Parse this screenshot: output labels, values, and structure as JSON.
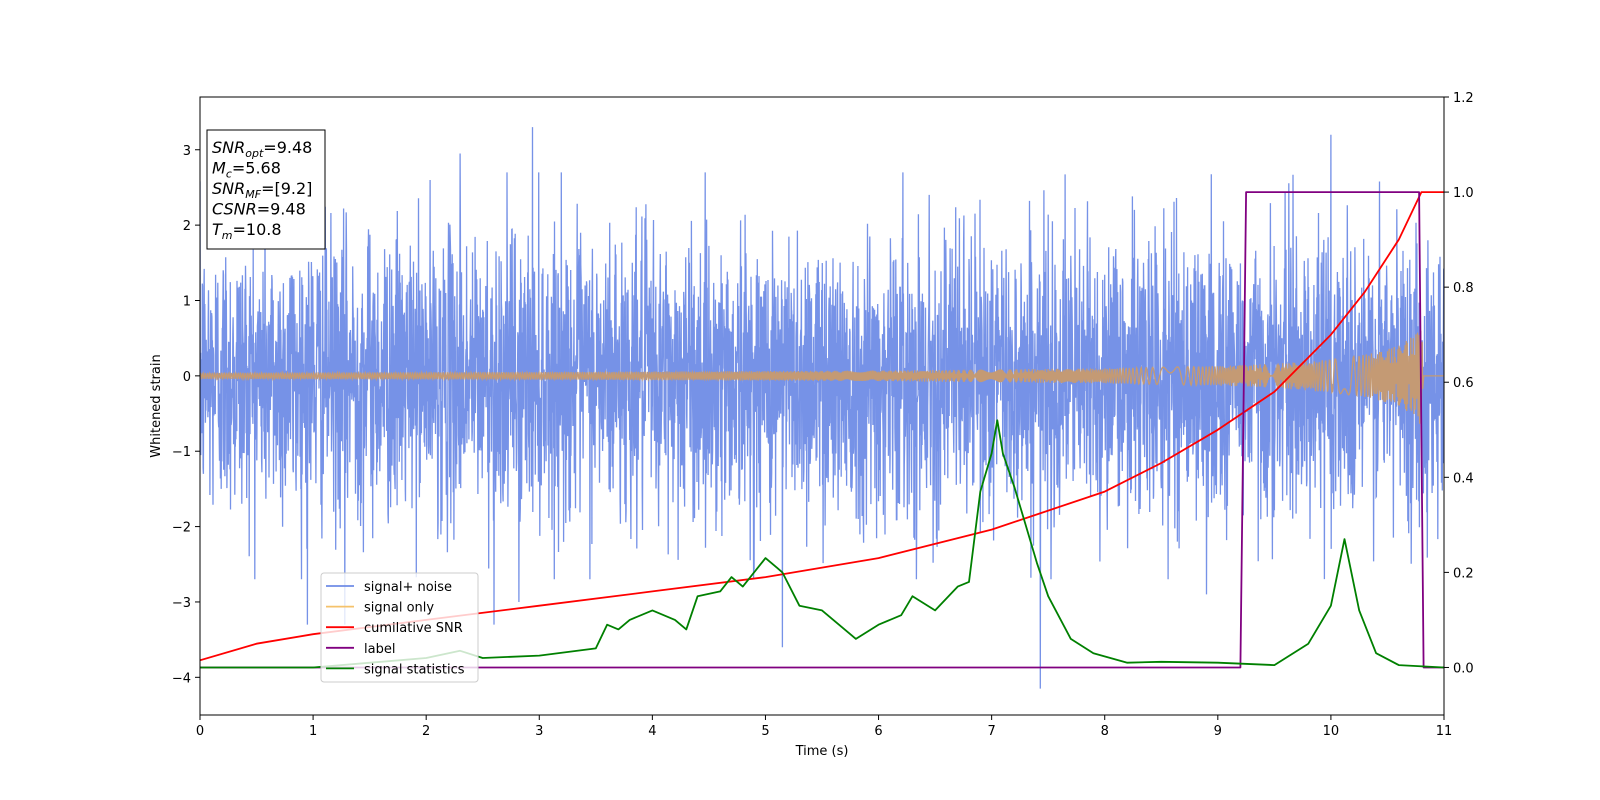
{
  "chart_data": {
    "type": "line",
    "xlabel": "Time (s)",
    "ylabel": "Whitened strain",
    "xlim": [
      0,
      11
    ],
    "ylim": [
      -4.5,
      3.7
    ],
    "y2lim": [
      -0.1,
      1.2
    ],
    "x_ticks": [
      "0",
      "1",
      "2",
      "3",
      "4",
      "5",
      "6",
      "7",
      "8",
      "9",
      "10",
      "11"
    ],
    "y_ticks": [
      "−4",
      "−3",
      "−2",
      "−1",
      "0",
      "1",
      "2",
      "3"
    ],
    "y2_ticks": [
      "0.0",
      "0.2",
      "0.4",
      "0.6",
      "0.8",
      "1.0",
      "1.2"
    ],
    "legend": {
      "placement": "lower-left",
      "entries": [
        {
          "label": "signal+ noise",
          "color": "#6f8ce6"
        },
        {
          "label": "signal only",
          "color": "#f5c26b"
        },
        {
          "label": "cumilative SNR",
          "color": "#ff0000"
        },
        {
          "label": "label",
          "color": "#800080"
        },
        {
          "label": "signal statistics",
          "color": "#008000"
        }
      ]
    },
    "stats_box": {
      "placement": "top-left",
      "lines": [
        {
          "sym": "SNR",
          "sub": "opt",
          "val": "=9.48"
        },
        {
          "sym": "M",
          "sub": "c",
          "val": "=5.68"
        },
        {
          "sym": "SNR",
          "sub": "MF",
          "val": "=[9.2]"
        },
        {
          "sym": "CSNR",
          "sub": "",
          "val": "=9.48"
        },
        {
          "sym": "T",
          "sub": "m",
          "val": "=10.8"
        }
      ]
    },
    "series": [
      {
        "name": "signal+ noise",
        "axis": "left",
        "style": "dense noise, approximately ±1.5 typical amplitude",
        "color": "#6f8ce6",
        "typical_amplitude": 1.5,
        "spike_x": [
          0.95,
          1.28,
          2.3,
          2.6,
          2.82,
          2.94,
          5.15,
          7.43,
          8.9,
          10.0
        ],
        "spike_y": [
          -3.3,
          -3.3,
          2.95,
          -3.3,
          -3.0,
          3.3,
          -3.6,
          -4.15,
          -2.9,
          3.2
        ]
      },
      {
        "name": "signal only",
        "axis": "left",
        "color": "#c49a74",
        "envelope_x": [
          0,
          3,
          6,
          8,
          9,
          9.5,
          10,
          10.3,
          10.6,
          10.75,
          10.8,
          10.82,
          11
        ],
        "envelope_y": [
          0.04,
          0.05,
          0.07,
          0.1,
          0.13,
          0.16,
          0.22,
          0.28,
          0.4,
          0.55,
          0.75,
          0.0,
          0.0
        ]
      },
      {
        "name": "cumilative SNR",
        "axis": "right",
        "color": "#ff0000",
        "x": [
          0,
          0.5,
          1,
          2,
          3,
          4,
          5,
          6,
          7,
          7.5,
          8,
          8.5,
          9,
          9.5,
          10,
          10.3,
          10.6,
          10.8,
          10.9,
          11
        ],
        "y": [
          0.015,
          0.05,
          0.07,
          0.1,
          0.13,
          0.16,
          0.19,
          0.23,
          0.29,
          0.33,
          0.37,
          0.43,
          0.5,
          0.58,
          0.7,
          0.79,
          0.9,
          1.0,
          1.0,
          1.0
        ]
      },
      {
        "name": "label",
        "axis": "right",
        "color": "#800080",
        "x": [
          0,
          9.2,
          9.25,
          10.78,
          10.82,
          11
        ],
        "y": [
          0,
          0,
          1,
          1,
          0,
          0
        ]
      },
      {
        "name": "signal statistics",
        "axis": "right",
        "color": "#008000",
        "x": [
          0,
          1,
          2,
          2.3,
          2.5,
          3,
          3.5,
          3.6,
          3.7,
          3.8,
          4,
          4.2,
          4.3,
          4.4,
          4.6,
          4.7,
          4.8,
          5,
          5.1,
          5.15,
          5.3,
          5.5,
          5.8,
          6,
          6.2,
          6.3,
          6.5,
          6.7,
          6.8,
          6.9,
          7,
          7.05,
          7.1,
          7.2,
          7.3,
          7.4,
          7.5,
          7.7,
          7.9,
          8.2,
          8.5,
          9,
          9.5,
          9.8,
          10,
          10.12,
          10.25,
          10.4,
          10.6,
          11
        ],
        "y": [
          0,
          0,
          0.02,
          0.035,
          0.02,
          0.025,
          0.04,
          0.09,
          0.08,
          0.1,
          0.12,
          0.1,
          0.08,
          0.15,
          0.16,
          0.19,
          0.17,
          0.23,
          0.21,
          0.2,
          0.13,
          0.12,
          0.06,
          0.09,
          0.11,
          0.15,
          0.12,
          0.17,
          0.18,
          0.37,
          0.45,
          0.52,
          0.45,
          0.38,
          0.3,
          0.22,
          0.15,
          0.06,
          0.03,
          0.01,
          0.012,
          0.01,
          0.005,
          0.05,
          0.13,
          0.27,
          0.12,
          0.03,
          0.005,
          0
        ]
      }
    ]
  }
}
